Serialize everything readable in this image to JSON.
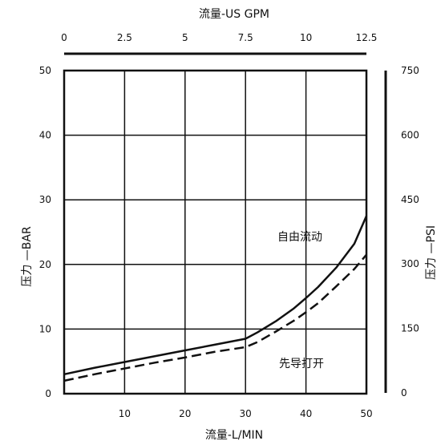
{
  "chart_data": {
    "type": "line",
    "title": "",
    "xlabel": "流量-L/MIN",
    "x2label": "流量-US GPM",
    "ylabel": "压力 —BAR",
    "y2label": "压力 —PSI",
    "xlim": [
      0,
      50
    ],
    "ylim": [
      0,
      50
    ],
    "x2lim": [
      0,
      12.5
    ],
    "y2lim": [
      0,
      750
    ],
    "x_ticks": [
      10,
      20,
      30,
      40,
      50
    ],
    "y_ticks": [
      0,
      10,
      20,
      30,
      40,
      50
    ],
    "x2_ticks": [
      "0",
      "2.5",
      "5",
      "7.5",
      "10",
      "12.5"
    ],
    "y2_ticks": [
      "0",
      "150",
      "300",
      "450",
      "600",
      "750"
    ],
    "grid": true,
    "annotations": [
      "自由流动",
      "先导打开"
    ],
    "series": [
      {
        "style": "solid",
        "x": [
          0,
          5,
          10,
          15,
          20,
          25,
          30,
          32,
          35,
          38,
          40,
          42,
          45,
          48,
          50
        ],
        "y": [
          3,
          4,
          4.9,
          5.8,
          6.7,
          7.6,
          8.5,
          9.5,
          11.2,
          13.2,
          14.8,
          16.5,
          19.5,
          23.2,
          27.5
        ]
      },
      {
        "style": "dashed",
        "x": [
          0,
          5,
          10,
          15,
          20,
          25,
          30,
          32,
          35,
          38,
          40,
          42,
          45,
          48,
          50
        ],
        "y": [
          2,
          3,
          3.9,
          4.8,
          5.6,
          6.5,
          7.2,
          8,
          9.6,
          11.3,
          12.6,
          14,
          16.6,
          19.3,
          21.5
        ]
      }
    ]
  }
}
